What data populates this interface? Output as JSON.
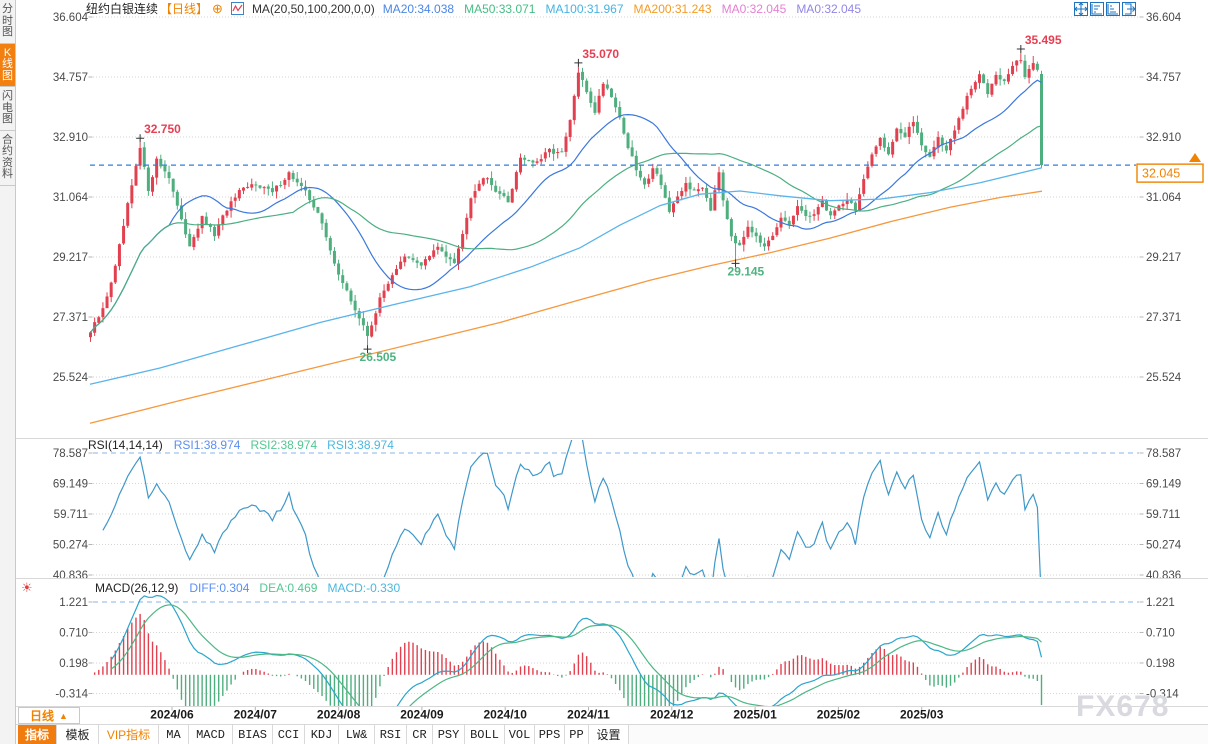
{
  "app": {
    "watermark": "FX678"
  },
  "sidebar": {
    "items": [
      {
        "label": "分时图",
        "selected": false
      },
      {
        "label": "K线图",
        "selected": true
      },
      {
        "label": "闪电图",
        "selected": false
      },
      {
        "label": "合约资料",
        "selected": false
      }
    ]
  },
  "header": {
    "symbol": "纽约白银连续",
    "period_tag": "【日线】",
    "expand_icon": "⊕",
    "ma_settings": "MA(20,50,100,200,0,0)",
    "ma_values": [
      {
        "label": "MA20:34.038",
        "color": "#4a86e8"
      },
      {
        "label": "MA50:33.071",
        "color": "#45bd84"
      },
      {
        "label": "MA100:31.967",
        "color": "#45b4e3"
      },
      {
        "label": "MA200:31.243",
        "color": "#f59a23"
      },
      {
        "label": "MA0:32.045",
        "color": "#e57fd2"
      },
      {
        "label": "MA0:32.045",
        "color": "#9186e8"
      }
    ]
  },
  "window_icons": [
    {
      "name": "chart-move-icon"
    },
    {
      "name": "zoom-horizontal-icon"
    },
    {
      "name": "zoom-vertical-icon"
    },
    {
      "name": "pan-right-icon"
    }
  ],
  "main_axis": {
    "labels": [
      "36.604",
      "34.757",
      "32.910",
      "31.064",
      "29.217",
      "27.371",
      "25.524"
    ]
  },
  "price_tag": {
    "value": "32.045"
  },
  "rsi": {
    "title": "RSI(14,14,14)",
    "values": [
      {
        "label": "RSI1:38.974",
        "color": "#5b8ff0"
      },
      {
        "label": "RSI2:38.974",
        "color": "#52c792"
      },
      {
        "label": "RSI3:38.974",
        "color": "#4ab8e0"
      }
    ],
    "axis": [
      "78.587",
      "69.149",
      "59.711",
      "50.274",
      "40.836"
    ]
  },
  "macd": {
    "title": "MACD(26,12,9)",
    "values": [
      {
        "label": "DIFF:0.304",
        "color": "#5b8ff0"
      },
      {
        "label": "DEA:0.469",
        "color": "#52c792"
      },
      {
        "label": "MACD:-0.330",
        "color": "#4ab8e0"
      }
    ],
    "axis": [
      "1.221",
      "0.710",
      "0.198",
      "-0.314"
    ]
  },
  "xaxis": {
    "period_label": "日线",
    "period_arrow": "▲",
    "months": [
      "2024/06",
      "2024/07",
      "2024/08",
      "2024/09",
      "2024/10",
      "2024/11",
      "2024/12",
      "2025/01",
      "2025/02",
      "2025/03"
    ]
  },
  "toolbar": {
    "tabs": [
      {
        "label": "指标",
        "state": "selected"
      },
      {
        "label": "模板",
        "state": "normal"
      },
      {
        "label": "VIP指标",
        "state": "vip"
      },
      {
        "label": "MA",
        "state": "mono"
      },
      {
        "label": "MACD",
        "state": "mono"
      },
      {
        "label": "BIAS",
        "state": "mono"
      },
      {
        "label": "CCI",
        "state": "mono"
      },
      {
        "label": "KDJ",
        "state": "mono"
      },
      {
        "label": "LW&",
        "state": "mono"
      },
      {
        "label": "RSI",
        "state": "mono"
      },
      {
        "label": "CR",
        "state": "mono"
      },
      {
        "label": "PSY",
        "state": "mono"
      },
      {
        "label": "BOLL",
        "state": "mono"
      },
      {
        "label": "VOL",
        "state": "mono"
      },
      {
        "label": "PPS",
        "state": "mono"
      },
      {
        "label": "PP",
        "state": "mono"
      },
      {
        "label": "设置",
        "state": "normal"
      }
    ]
  },
  "colors": {
    "up": "#e3404f",
    "down": "#4fae7d",
    "ma20": "#3c78dc",
    "ma50": "#4caf82",
    "ma100": "#5ab4ea",
    "ma200": "#f5993e",
    "rsi_line": "#3f98c9",
    "diff_line": "#2aa5cc",
    "dea_line": "#4cb885",
    "price_line": "#2f7de0",
    "grid": "#d6d6d6",
    "dashed_blue": "#8ab4e8",
    "annotation_high": "#e83e52",
    "annotation_low": "#4db380",
    "tick": "#b5b5b5",
    "axis_text": "#4a4a4a",
    "tag": "#f08300"
  },
  "chart_data": {
    "type": "candlestick",
    "symbol": "纽约白银连续",
    "period": "日线",
    "last_price": 32.045,
    "n_candles": 231,
    "price_axis": [
      36.604,
      34.757,
      32.91,
      31.064,
      29.217,
      27.371,
      25.524
    ],
    "rsi_axis": [
      78.587,
      69.149,
      59.711,
      50.274,
      40.836
    ],
    "macd_axis": [
      1.221,
      0.71,
      0.198,
      -0.314
    ],
    "close_path": [
      [
        0,
        26.9
      ],
      [
        3,
        27.6
      ],
      [
        6,
        28.9
      ],
      [
        9,
        30.8
      ],
      [
        12,
        32.55
      ],
      [
        14,
        31.3
      ],
      [
        16,
        32.2
      ],
      [
        19,
        31.7
      ],
      [
        22,
        30.3
      ],
      [
        24,
        29.6
      ],
      [
        27,
        30.4
      ],
      [
        30,
        29.9
      ],
      [
        33,
        30.7
      ],
      [
        36,
        31.2
      ],
      [
        40,
        31.5
      ],
      [
        44,
        31.2
      ],
      [
        48,
        31.8
      ],
      [
        52,
        31.2
      ],
      [
        55,
        30.6
      ],
      [
        58,
        29.4
      ],
      [
        61,
        28.4
      ],
      [
        64,
        27.6
      ],
      [
        67,
        26.8
      ],
      [
        70,
        27.9
      ],
      [
        73,
        28.7
      ],
      [
        76,
        29.2
      ],
      [
        80,
        29.0
      ],
      [
        84,
        29.5
      ],
      [
        88,
        29.1
      ],
      [
        90,
        29.9
      ],
      [
        92,
        31.1
      ],
      [
        95,
        31.7
      ],
      [
        98,
        31.3
      ],
      [
        101,
        30.9
      ],
      [
        104,
        32.3
      ],
      [
        108,
        32.1
      ],
      [
        111,
        32.5
      ],
      [
        114,
        32.4
      ],
      [
        116,
        33.4
      ],
      [
        118,
        34.9
      ],
      [
        120,
        34.3
      ],
      [
        122,
        33.7
      ],
      [
        124,
        34.6
      ],
      [
        126,
        34.2
      ],
      [
        128,
        33.5
      ],
      [
        130,
        32.6
      ],
      [
        132,
        31.9
      ],
      [
        134,
        31.4
      ],
      [
        136,
        32.0
      ],
      [
        138,
        31.5
      ],
      [
        140,
        30.6
      ],
      [
        142,
        31.0
      ],
      [
        144,
        31.5
      ],
      [
        146,
        31.2
      ],
      [
        148,
        31.4
      ],
      [
        150,
        30.7
      ],
      [
        152,
        31.9
      ],
      [
        153,
        31.0
      ],
      [
        155,
        29.9
      ],
      [
        157,
        29.5
      ],
      [
        159,
        30.2
      ],
      [
        161,
        29.9
      ],
      [
        163,
        29.5
      ],
      [
        165,
        29.8
      ],
      [
        167,
        30.4
      ],
      [
        169,
        30.2
      ],
      [
        171,
        30.8
      ],
      [
        173,
        30.4
      ],
      [
        175,
        30.6
      ],
      [
        177,
        30.9
      ],
      [
        179,
        30.5
      ],
      [
        181,
        30.8
      ],
      [
        183,
        31.0
      ],
      [
        185,
        30.7
      ],
      [
        187,
        31.6
      ],
      [
        189,
        32.3
      ],
      [
        191,
        32.9
      ],
      [
        193,
        32.4
      ],
      [
        195,
        33.2
      ],
      [
        197,
        32.9
      ],
      [
        199,
        33.4
      ],
      [
        201,
        32.7
      ],
      [
        203,
        32.3
      ],
      [
        205,
        32.9
      ],
      [
        207,
        32.5
      ],
      [
        209,
        33.1
      ],
      [
        211,
        33.8
      ],
      [
        213,
        34.4
      ],
      [
        215,
        34.8
      ],
      [
        217,
        34.3
      ],
      [
        219,
        34.9
      ],
      [
        221,
        34.6
      ],
      [
        223,
        35.1
      ],
      [
        225,
        35.3
      ],
      [
        226,
        34.8
      ],
      [
        227,
        35.0
      ],
      [
        228,
        35.2
      ],
      [
        229,
        34.9
      ],
      [
        230,
        32.045
      ]
    ],
    "key_points": [
      {
        "index": 12,
        "type": "high",
        "value": 32.75,
        "label": "32.750"
      },
      {
        "index": 67,
        "type": "low",
        "value": 26.505,
        "label": "26.505"
      },
      {
        "index": 118,
        "type": "high",
        "value": 35.07,
        "label": "35.070"
      },
      {
        "index": 156,
        "type": "low",
        "value": 29.145,
        "label": "29.145"
      },
      {
        "index": 225,
        "type": "high",
        "value": 35.495,
        "label": "35.495"
      }
    ],
    "last_candle": {
      "open": 34.85,
      "high": 34.95,
      "low": 31.95,
      "close": 32.045
    },
    "ma100_path": [
      [
        90,
        25.3
      ],
      [
        160,
        25.8
      ],
      [
        240,
        26.5
      ],
      [
        320,
        27.2
      ],
      [
        400,
        27.8
      ],
      [
        470,
        28.3
      ],
      [
        530,
        28.9
      ],
      [
        580,
        29.5
      ],
      [
        620,
        30.2
      ],
      [
        660,
        30.8
      ],
      [
        700,
        31.15
      ],
      [
        740,
        31.25
      ],
      [
        780,
        31.1
      ],
      [
        830,
        30.95
      ],
      [
        880,
        31.0
      ],
      [
        930,
        31.2
      ],
      [
        980,
        31.5
      ],
      [
        1042,
        31.967
      ]
    ],
    "ma200_path": [
      [
        90,
        24.1
      ],
      [
        180,
        24.8
      ],
      [
        260,
        25.4
      ],
      [
        340,
        26.0
      ],
      [
        420,
        26.6
      ],
      [
        500,
        27.2
      ],
      [
        580,
        27.9
      ],
      [
        650,
        28.5
      ],
      [
        710,
        28.95
      ],
      [
        770,
        29.35
      ],
      [
        830,
        29.8
      ],
      [
        890,
        30.3
      ],
      [
        950,
        30.75
      ],
      [
        1000,
        31.05
      ],
      [
        1042,
        31.243
      ]
    ],
    "rsi_last": 38.974,
    "diff_last": 0.304,
    "dea_last": 0.469,
    "macd_last": -0.33
  }
}
